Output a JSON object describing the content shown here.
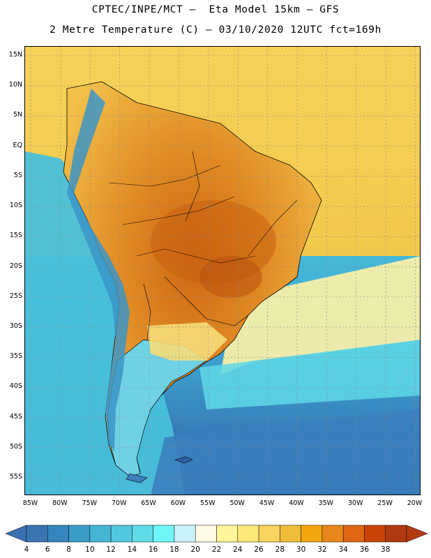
{
  "title": {
    "line1": "CPTEC/INPE/MCT –  Eta Model 15km – GFS",
    "line2": "2 Metre Temperature (C) – 03/10/2020 12UTC fct=169h"
  },
  "map": {
    "lat_labels": [
      "15N",
      "10N",
      "5N",
      "EQ",
      "5S",
      "10S",
      "15S",
      "20S",
      "25S",
      "30S",
      "35S",
      "40S",
      "45S",
      "50S",
      "55S"
    ],
    "lon_labels": [
      "85W",
      "80W",
      "75W",
      "70W",
      "65W",
      "60W",
      "55W",
      "50W",
      "45W",
      "40W",
      "35W",
      "30W",
      "25W",
      "20W"
    ],
    "extent": {
      "lon_min": -86,
      "lon_max": -19,
      "lat_min": -58,
      "lat_max": 16.5
    },
    "grid_lines": true
  },
  "colorbar": {
    "labels": [
      "4",
      "6",
      "8",
      "10",
      "12",
      "14",
      "16",
      "18",
      "20",
      "22",
      "24",
      "26",
      "28",
      "30",
      "32",
      "34",
      "36",
      "38"
    ],
    "colors": [
      "#3a75b2",
      "#3585be",
      "#3a9dc9",
      "#45b5d6",
      "#52c8df",
      "#5fdce8",
      "#6ff6f9",
      "#c9f2fa",
      "#fffbe6",
      "#fff59a",
      "#fde877",
      "#f7d35f",
      "#efbd39",
      "#f2a70e",
      "#e8861c",
      "#de6614",
      "#c94406",
      "#b03a10"
    ],
    "low_arrow_color": "#3a6fb4",
    "high_arrow_color": "#b23b10"
  },
  "palette": {
    "ocean_north": "#f0c848",
    "ocean_south_deep": "#2f5ea8",
    "brazil_hot": "#e89a2a",
    "brazil_core": "#cf6a14",
    "andes_cold": "#52b8d8",
    "pacific": "#4cc6dc"
  }
}
